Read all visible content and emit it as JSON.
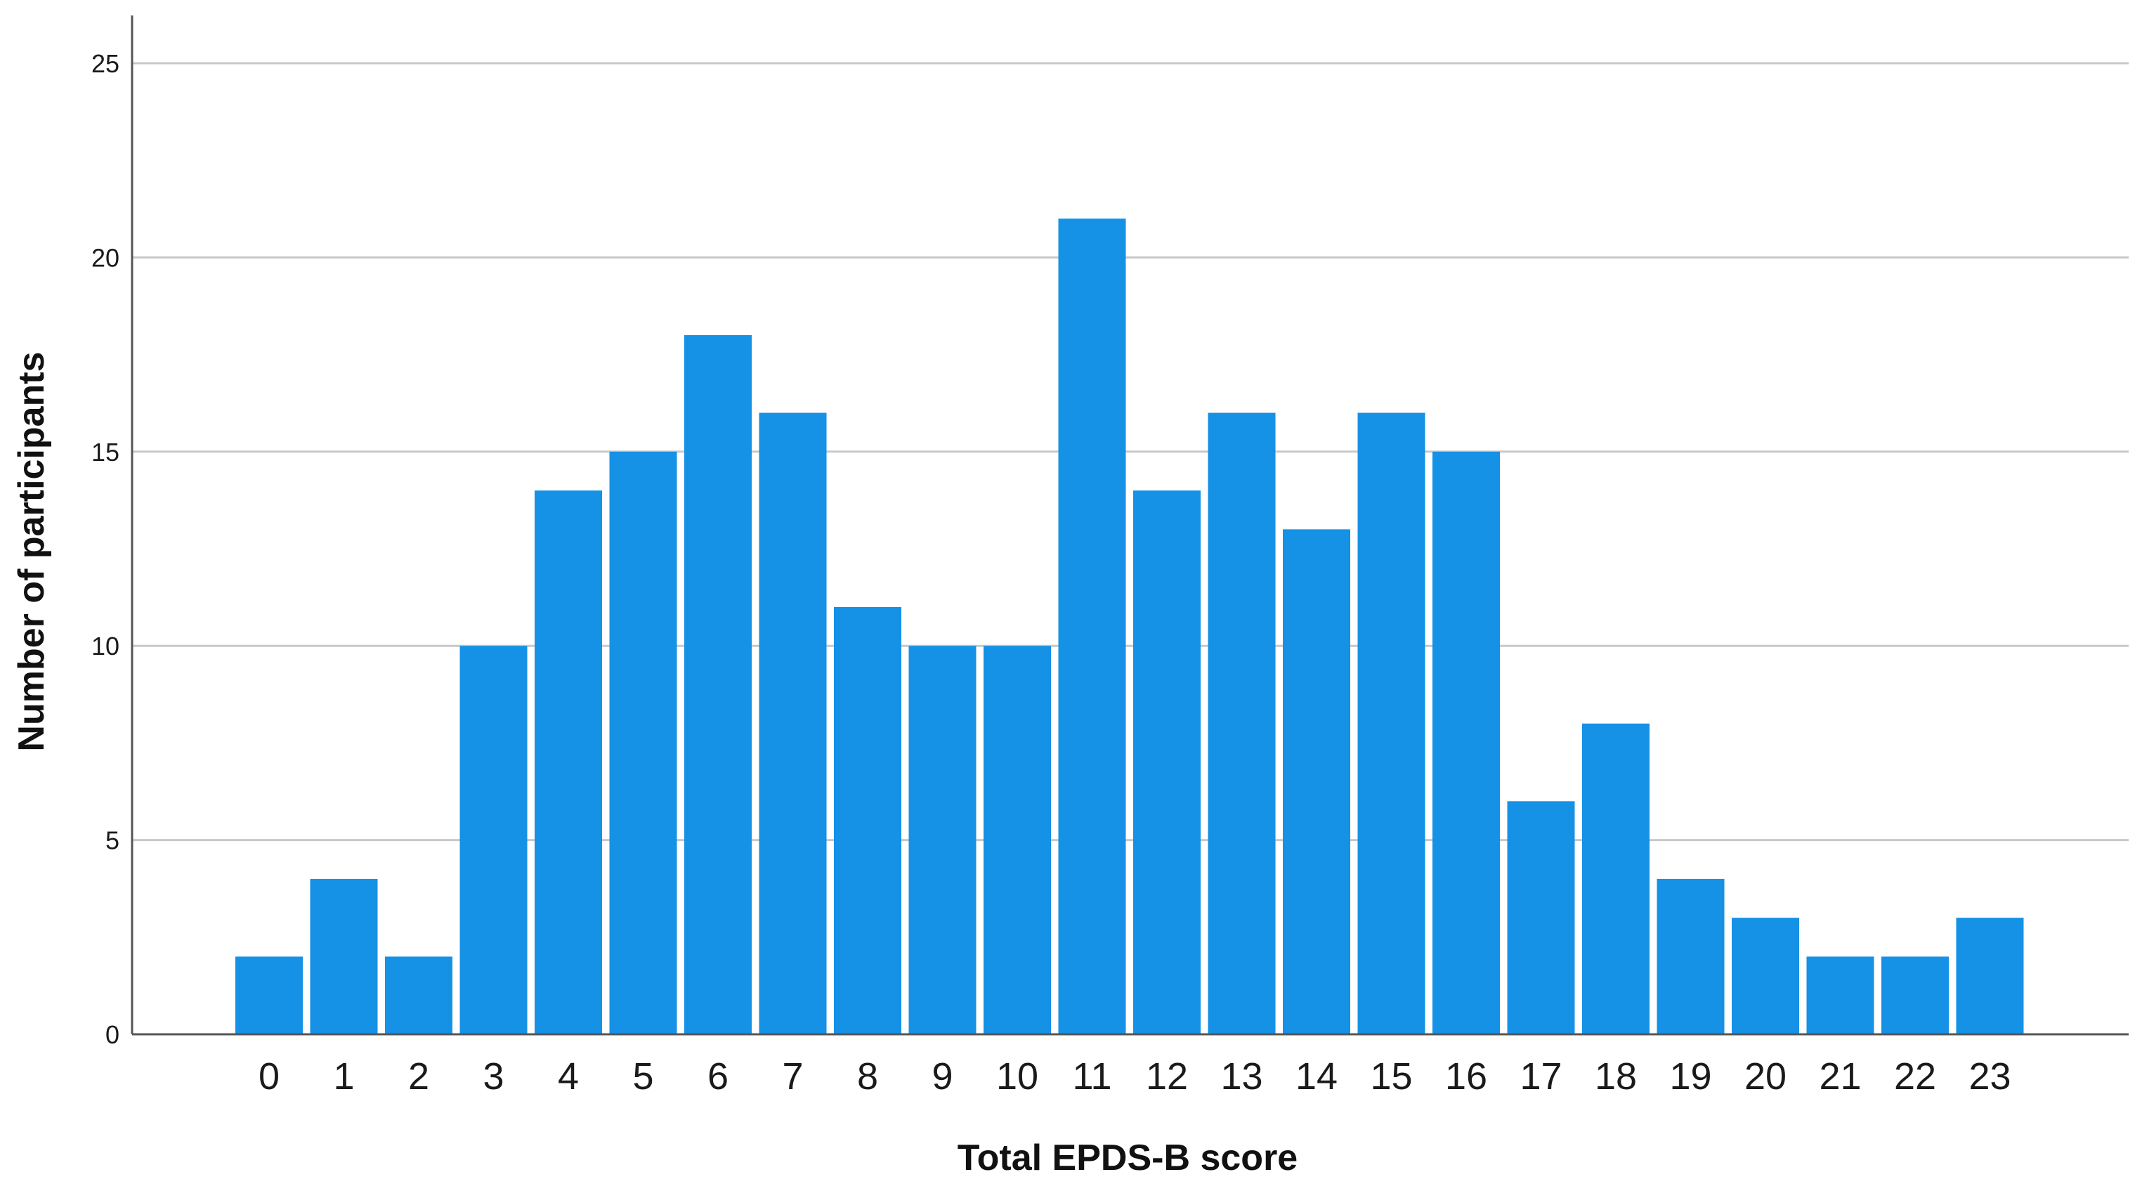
{
  "chart_data": {
    "type": "bar",
    "title": "",
    "xlabel": "Total EPDS-B score",
    "ylabel": "Number of participants",
    "categories": [
      "0",
      "1",
      "2",
      "3",
      "4",
      "5",
      "6",
      "7",
      "8",
      "9",
      "10",
      "11",
      "12",
      "13",
      "14",
      "15",
      "16",
      "17",
      "18",
      "19",
      "20",
      "21",
      "22",
      "23"
    ],
    "values": [
      2,
      4,
      2,
      10,
      14,
      15,
      18,
      16,
      11,
      10,
      10,
      21,
      14,
      16,
      13,
      16,
      15,
      6,
      8,
      4,
      3,
      2,
      2,
      3
    ],
    "ylim": [
      0,
      25
    ],
    "yticks": [
      0,
      5,
      10,
      15,
      20,
      25
    ],
    "grid": true,
    "legend": "none",
    "colors": {
      "bar": "#1591e6",
      "grid": "#c8c8c8",
      "axis": "#555555"
    }
  }
}
